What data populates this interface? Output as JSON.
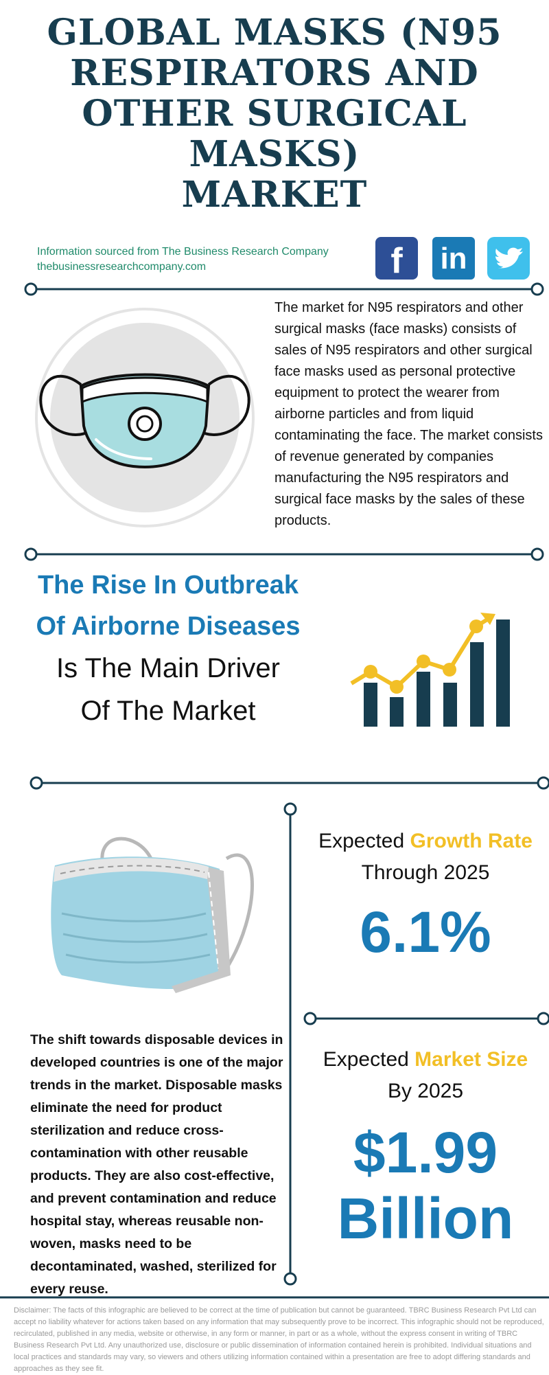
{
  "header": {
    "title": "GLOBAL MASKS (N95 RESPIRATORS AND OTHER SURGICAL MASKS)",
    "title_last_line": "MARKET",
    "source": "Information sourced from The Business Research Company",
    "website": "thebusinessresearchcompany.com",
    "social": {
      "facebook": "f",
      "linkedin": "in"
    }
  },
  "description": "The market for N95 respirators and other surgical masks (face masks) consists of sales of N95 respirators and other surgical face masks used as personal protective equipment to protect the wearer from airborne particles and from liquid contaminating the face. The market consists of revenue generated by companies manufacturing the N95 respirators and surgical face masks by the sales of these products.",
  "driver": {
    "highlight": "The Rise In Outbreak Of Airborne Diseases",
    "text": "Is The Main Driver Of The Market"
  },
  "growth": {
    "prefix": "Expected",
    "highlight": "Growth Rate",
    "period": "Through 2025",
    "value": "6.1%"
  },
  "market_size": {
    "prefix": "Expected",
    "highlight": "Market Size",
    "period": "By 2025",
    "value": "$1.99 Billion"
  },
  "trend": "The shift towards disposable devices in developed countries is one of the major trends in the market. Disposable masks eliminate the need for product sterilization and reduce cross-contamination with other reusable products. They are also cost-effective, and prevent contamination and reduce hospital stay, whereas reusable non-woven, masks need to be decontaminated, washed, sterilized for every reuse.",
  "disclaimer": "Disclaimer: The facts of this infographic are believed to be correct at the time of publication but cannot be guaranteed. TBRC Business Research Pvt Ltd can accept no liability whatever for actions taken based on any information that may subsequently prove to be incorrect. This infographic should not be reproduced, recirculated, published in any media, website or otherwise, in any form or manner, in part or as a whole, without the express consent in writing of TBRC Business Research Pvt Ltd. Any unauthorized use, disclosure or public dissemination of information contained herein is prohibited. Individual situations and local practices and standards may vary, so viewers and others utilizing information contained within a presentation are free to adopt differing standards and approaches as they see fit."
}
